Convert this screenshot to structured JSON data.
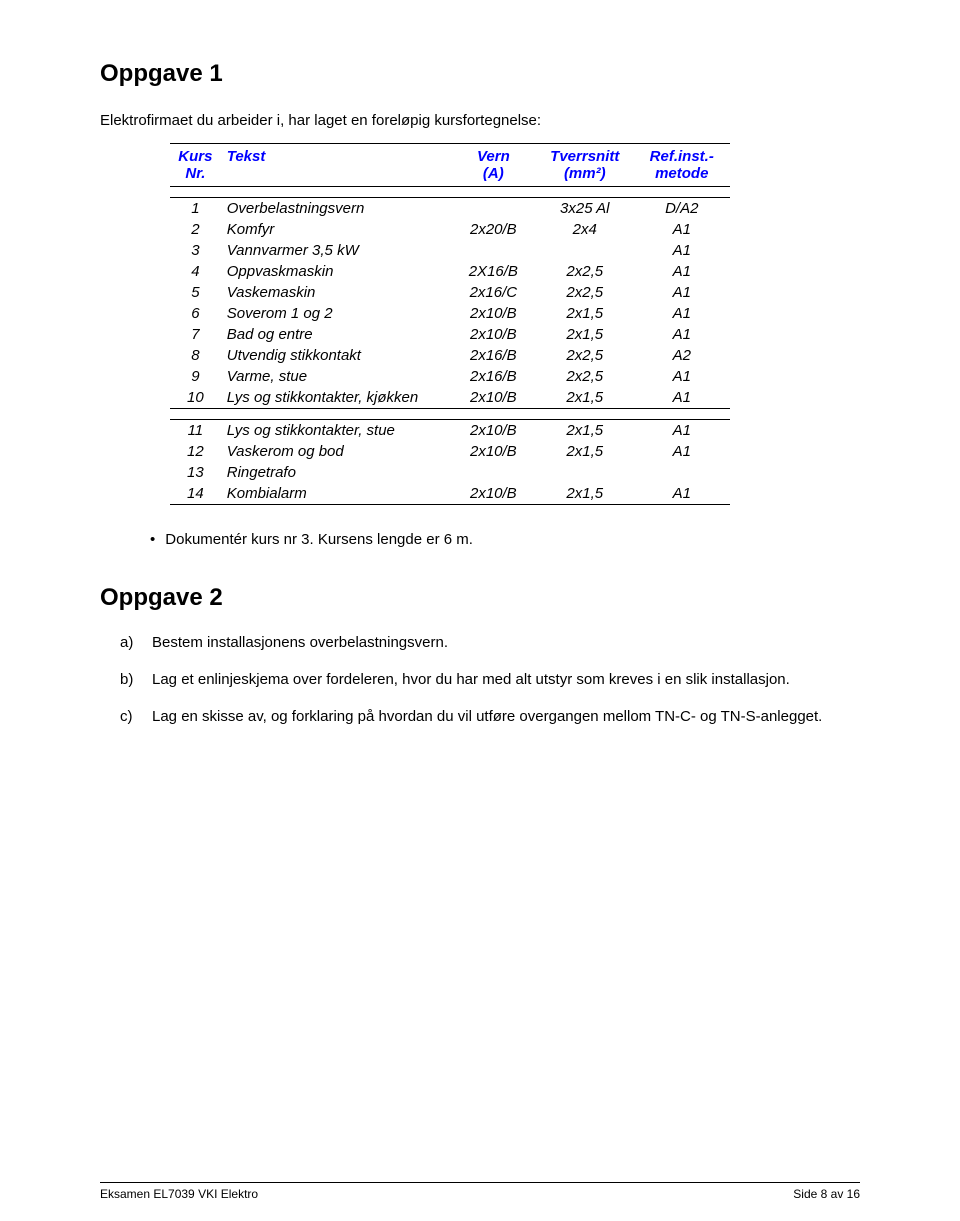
{
  "oppgave1": {
    "title": "Oppgave 1",
    "intro": "Elektrofirmaet du arbeider i, har laget en foreløpig kursfortegnelse:"
  },
  "table": {
    "header": {
      "nr_l1": "Kurs",
      "nr_l2": "Nr.",
      "tekst": "Tekst",
      "vern_l1": "Vern",
      "vern_l2": "(A)",
      "tv_l1": "Tverrsnitt",
      "tv_l2": "(mm²)",
      "ref_l1": "Ref.inst.-",
      "ref_l2": "metode"
    },
    "section1": [
      {
        "nr": "1",
        "txt": "Overbelastningsvern",
        "vern": "",
        "tv": "3x25 Al",
        "ref": "D/A2"
      },
      {
        "nr": "2",
        "txt": "Komfyr",
        "vern": "2x20/B",
        "tv": "2x4",
        "ref": "A1"
      },
      {
        "nr": "3",
        "txt": "Vannvarmer 3,5 kW",
        "vern": "",
        "tv": "",
        "ref": "A1"
      },
      {
        "nr": "4",
        "txt": "Oppvaskmaskin",
        "vern": "2X16/B",
        "tv": "2x2,5",
        "ref": "A1"
      },
      {
        "nr": "5",
        "txt": "Vaskemaskin",
        "vern": "2x16/C",
        "tv": "2x2,5",
        "ref": "A1"
      },
      {
        "nr": "6",
        "txt": "Soverom 1 og 2",
        "vern": "2x10/B",
        "tv": "2x1,5",
        "ref": "A1"
      },
      {
        "nr": "7",
        "txt": "Bad og entre",
        "vern": "2x10/B",
        "tv": "2x1,5",
        "ref": "A1"
      },
      {
        "nr": "8",
        "txt": "Utvendig stikkontakt",
        "vern": "2x16/B",
        "tv": "2x2,5",
        "ref": "A2"
      },
      {
        "nr": "9",
        "txt": "Varme, stue",
        "vern": "2x16/B",
        "tv": "2x2,5",
        "ref": "A1"
      },
      {
        "nr": "10",
        "txt": "Lys og stikkontakter, kjøkken",
        "vern": "2x10/B",
        "tv": "2x1,5",
        "ref": "A1"
      }
    ],
    "section2": [
      {
        "nr": "11",
        "txt": "Lys og stikkontakter, stue",
        "vern": "2x10/B",
        "tv": "2x1,5",
        "ref": "A1"
      },
      {
        "nr": "12",
        "txt": "Vaskerom og bod",
        "vern": "2x10/B",
        "tv": "2x1,5",
        "ref": "A1"
      },
      {
        "nr": "13",
        "txt": "Ringetrafo",
        "vern": "",
        "tv": "",
        "ref": ""
      },
      {
        "nr": "14",
        "txt": "Kombialarm",
        "vern": "2x10/B",
        "tv": "2x1,5",
        "ref": "A1"
      }
    ]
  },
  "bullet": "Dokumentér kurs nr 3. Kursens lengde er 6 m.",
  "oppgave2": {
    "title": "Oppgave 2",
    "a": "Bestem installasjonens overbelastningsvern.",
    "b": "Lag et enlinjeskjema over fordeleren, hvor du har med alt utstyr som kreves i en slik installasjon.",
    "c": "Lag en skisse av, og forklaring på hvordan du vil utføre overgangen mellom TN-C- og TN-S-anlegget."
  },
  "footer": {
    "left": "Eksamen EL7039 VKI Elektro",
    "right": "Side 8 av 16"
  }
}
